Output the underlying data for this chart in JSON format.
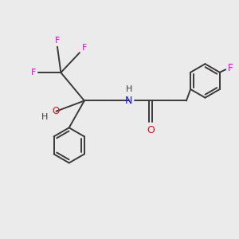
{
  "background_color": "#ebebeb",
  "bond_color": "#3a3a3a",
  "F_color": "#ee00ee",
  "O_color": "#dd1111",
  "N_color": "#1111dd",
  "figsize": [
    3.0,
    3.0
  ],
  "dpi": 100,
  "xlim": [
    0,
    10
  ],
  "ylim": [
    0,
    10
  ]
}
